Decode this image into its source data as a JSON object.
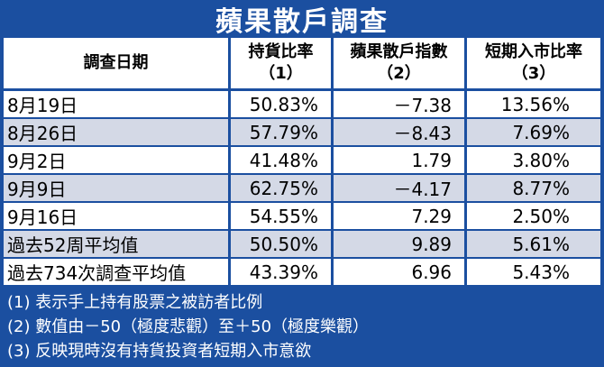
{
  "title": "蘋果散戶調查",
  "columns": {
    "date": "調查日期",
    "holding_line1": "持貨比率",
    "holding_line2": "（1）",
    "index_line1": "蘋果散戶指數",
    "index_line2": "（2）",
    "short_line1": "短期入市比率",
    "short_line2": "（3）"
  },
  "rows": [
    {
      "date": "8月19日",
      "holding": "50.83%",
      "index": "－7.38",
      "short": "13.56%"
    },
    {
      "date": "8月26日",
      "holding": "57.79%",
      "index": "－8.43",
      "short": "7.69%"
    },
    {
      "date": "9月2日",
      "holding": "41.48%",
      "index": "1.79",
      "short": "3.80%"
    },
    {
      "date": "9月9日",
      "holding": "62.75%",
      "index": "－4.17",
      "short": "8.77%"
    },
    {
      "date": "9月16日",
      "holding": "54.55%",
      "index": "7.29",
      "short": "2.50%"
    },
    {
      "date": "過去52周平均值",
      "holding": "50.50%",
      "index": "9.89",
      "short": "5.61%"
    },
    {
      "date": "過去734次調查平均值",
      "holding": "43.39%",
      "index": "6.96",
      "short": "5.43%"
    }
  ],
  "notes": [
    "(1) 表示手上持有股票之被訪者比例",
    "(2) 數值由－50（極度悲觀）至＋50（極度樂觀）",
    "(3) 反映現時沒有持貨投資者短期入市意欲"
  ],
  "colors": {
    "background": "#1b4fa0",
    "row_alt": "#d4d9e6",
    "text_on_blue": "#ffffff"
  }
}
